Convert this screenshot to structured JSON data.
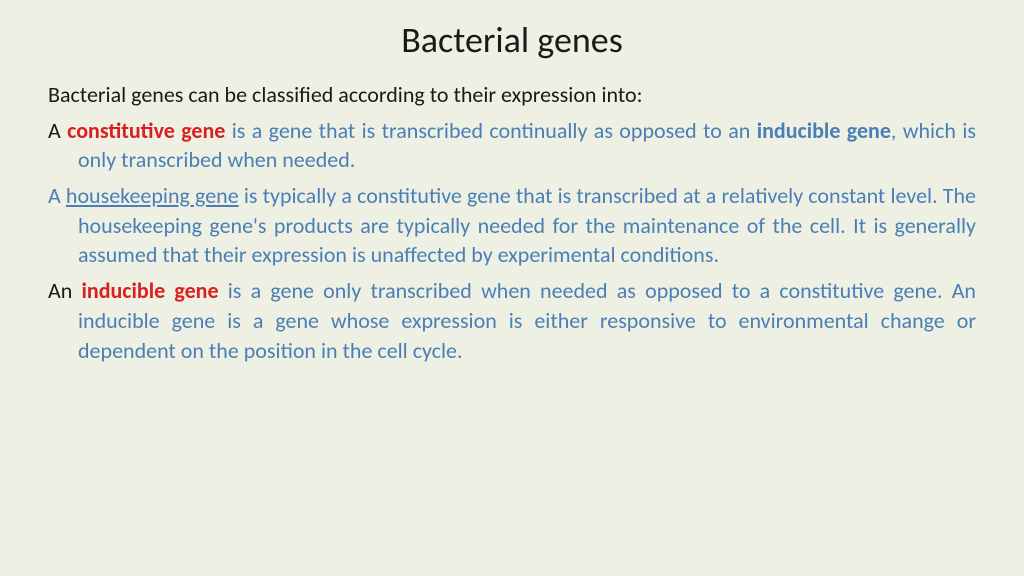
{
  "colors": {
    "background": "#eef0e4",
    "heading": "#1a1a1a",
    "body_black": "#1a1a1a",
    "key_term": "#d82020",
    "blue_text": "#4a7fb5"
  },
  "typography": {
    "title_fontsize": 36,
    "body_fontsize": 22,
    "font_family": "Calibri"
  },
  "title": "Bacterial genes",
  "intro": "Bacterial genes can be classified according to their expression  into:",
  "p1": {
    "lead": "A ",
    "term": "constitutive gene",
    "rest_a": " is a gene that is transcribed continually as opposed to an ",
    "bold_blue": "inducible gene",
    "rest_b": ", which is only transcribed when needed."
  },
  "p2": {
    "lead": "A ",
    "link": "housekeeping gene",
    "rest": " is typically a constitutive gene that is transcribed at a relatively constant level. The housekeeping gene's products are typically needed for the maintenance of the cell. It is generally assumed that their expression is unaffected by experimental conditions."
  },
  "p3": {
    "lead": "An ",
    "term": "inducible gene",
    "rest": " is a gene only transcribed when needed as opposed to a constitutive gene. An inducible gene is a gene whose expression is either responsive to environmental change or dependent on the position in the cell cycle."
  }
}
